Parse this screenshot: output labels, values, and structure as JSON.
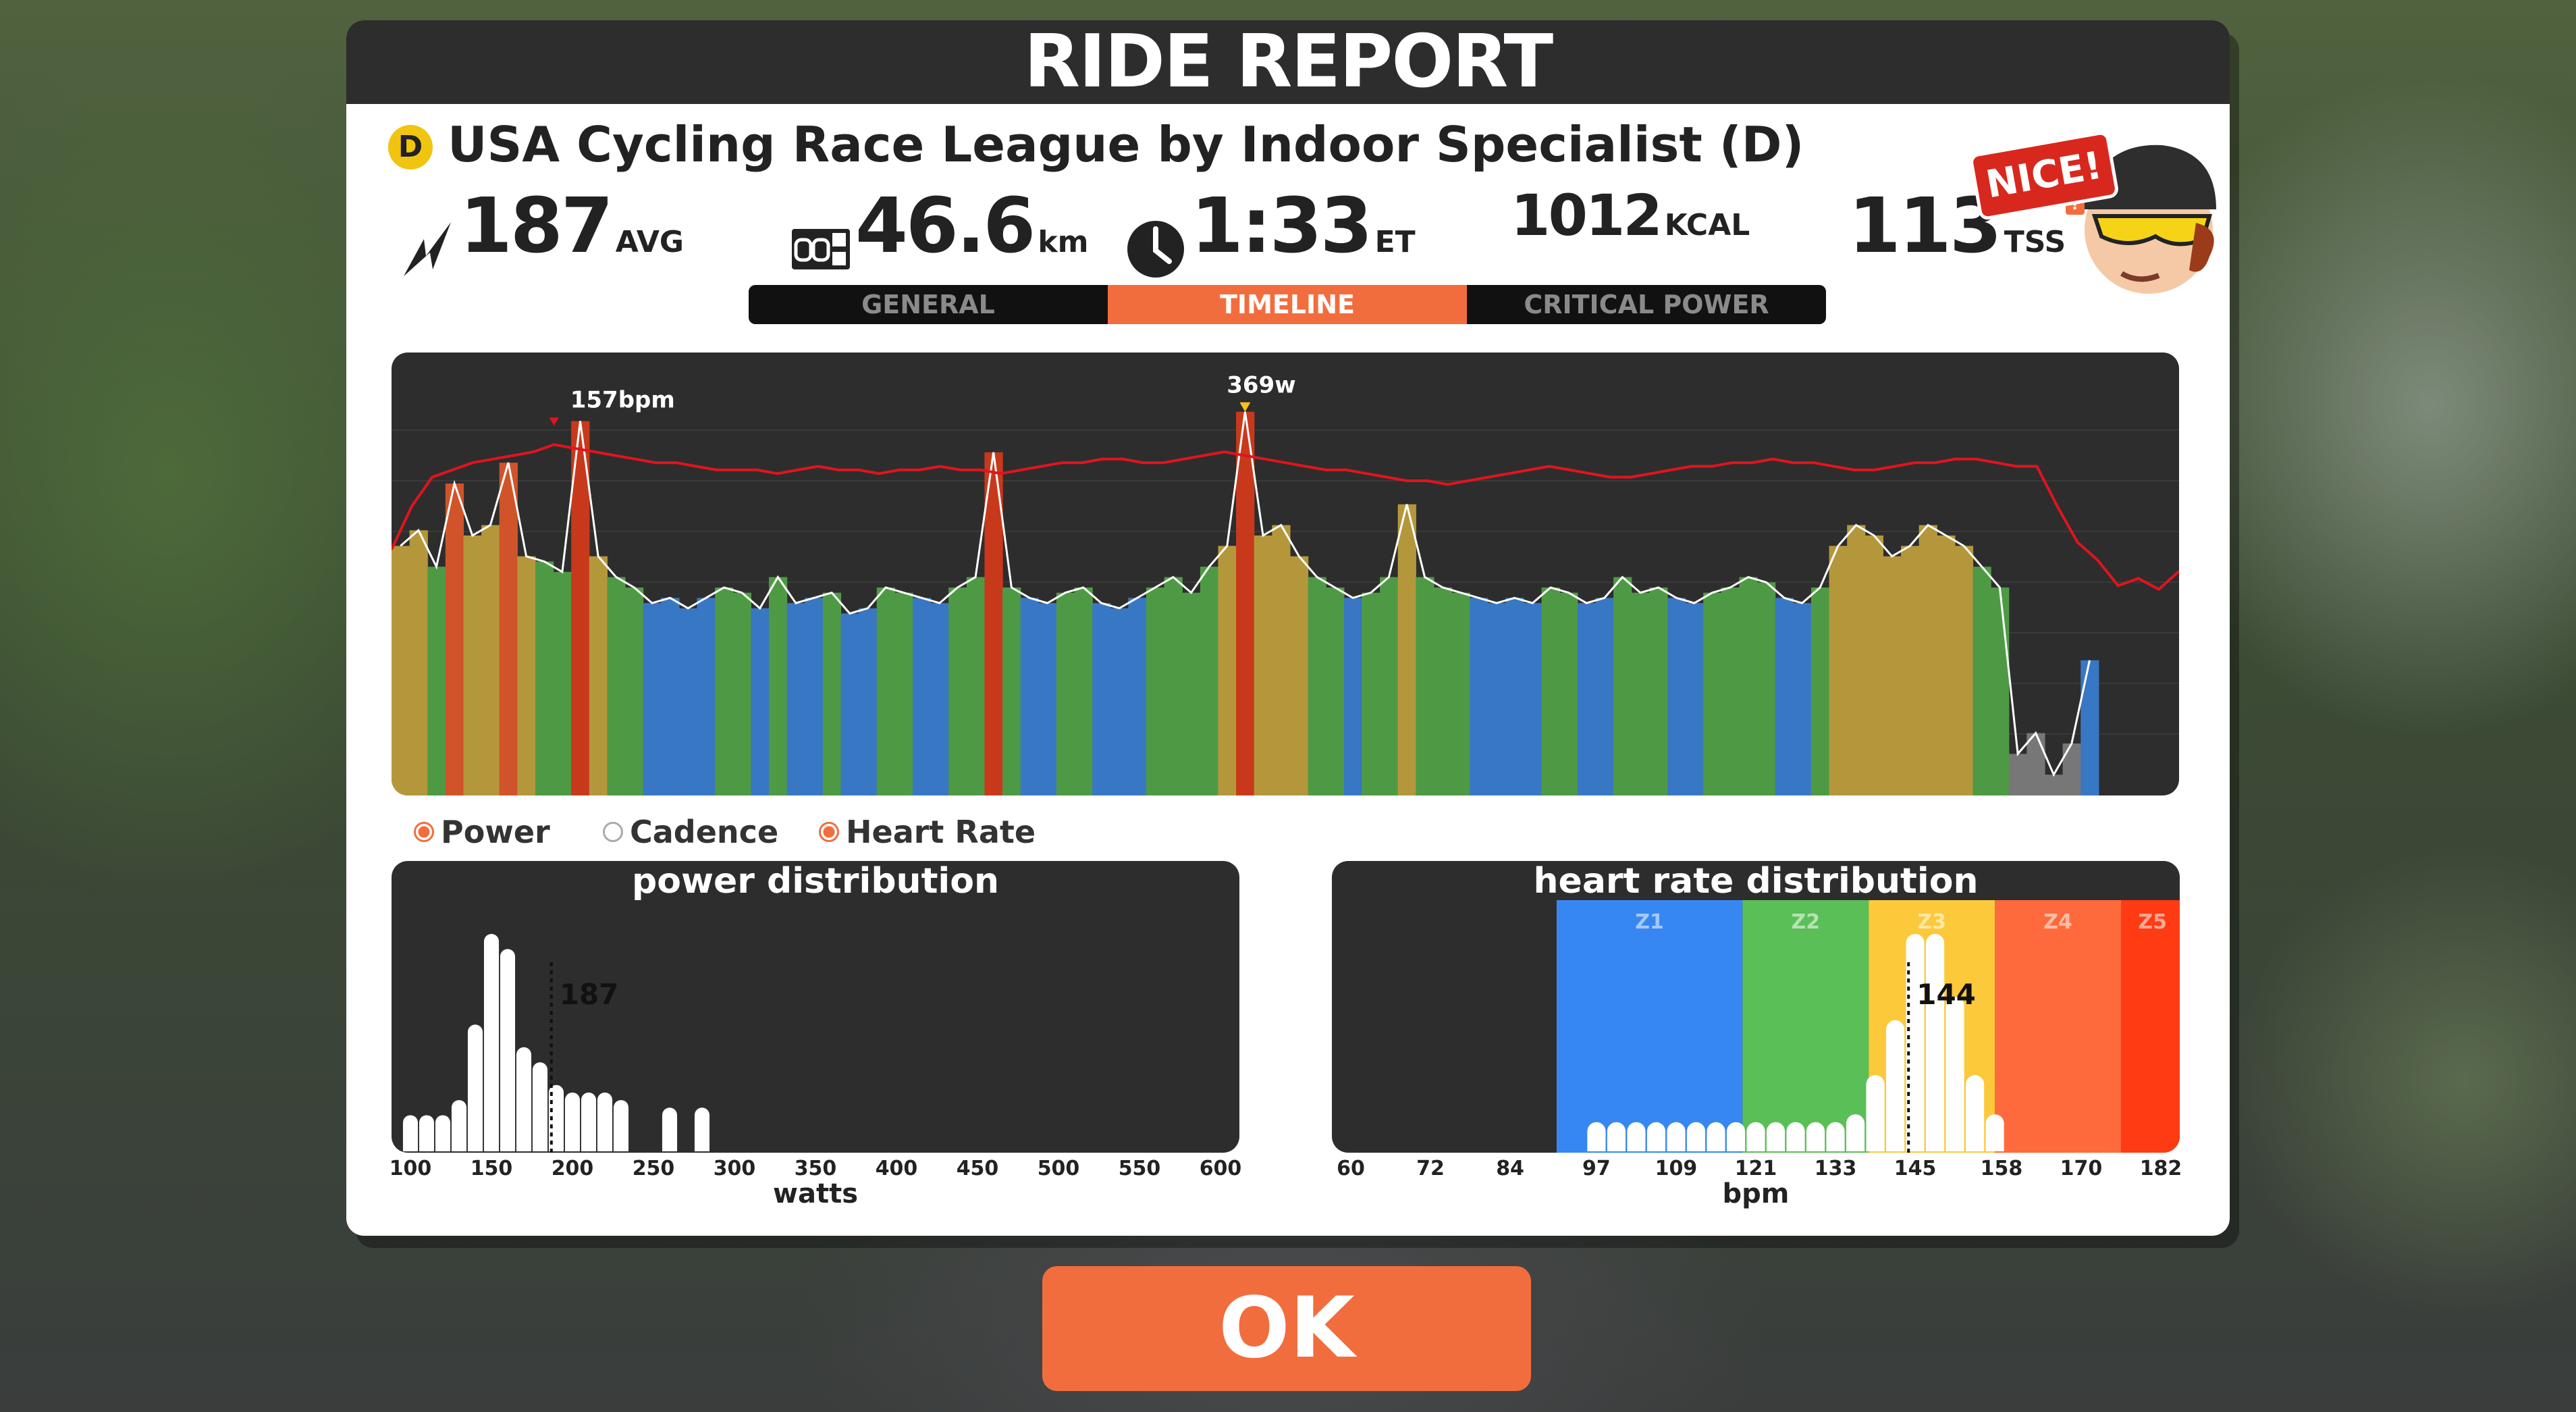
{
  "colors": {
    "accent": "#f26d3d",
    "panel": "#2d2d2d",
    "hr_line": "#e0141e",
    "z1": "#3787f2",
    "z2": "#5bbf57",
    "z3": "#fcc93a",
    "z4": "#ff6a3d",
    "z5": "#ff3b14"
  },
  "header": {
    "title": "RIDE REPORT"
  },
  "event": {
    "category": "D",
    "name": "USA Cycling Race League by Indoor Specialist (D)"
  },
  "stats": {
    "power": {
      "value": "187",
      "unit": "AVG",
      "icon": "lightning-icon"
    },
    "distance": {
      "value": "46.6",
      "unit": "km",
      "icon": "odometer-icon"
    },
    "time": {
      "value": "1:33",
      "unit": "ET",
      "icon": "clock-icon"
    },
    "calories": {
      "value": "1012",
      "unit": "KCAL"
    },
    "tss": {
      "value": "113",
      "unit": "TSS",
      "help": "?"
    }
  },
  "avatar": {
    "bubble": "NICE!"
  },
  "tabs": [
    {
      "label": "GENERAL"
    },
    {
      "label": "TIMELINE"
    },
    {
      "label": "CRITICAL POWER"
    }
  ],
  "legend": {
    "power": "Power",
    "cadence": "Cadence",
    "heart_rate": "Heart Rate"
  },
  "timeline": {
    "hr_annotation": "157bpm",
    "power_annotation": "369w"
  },
  "chart_data": [
    {
      "type": "area",
      "name": "timeline",
      "annotations": [
        "157bpm",
        "369w"
      ],
      "series": [
        {
          "name": "Power",
          "values": [
            240,
            255,
            220,
            300,
            250,
            260,
            320,
            230,
            225,
            215,
            360,
            230,
            210,
            200,
            185,
            190,
            180,
            190,
            200,
            195,
            180,
            210,
            185,
            190,
            195,
            175,
            180,
            200,
            195,
            190,
            185,
            200,
            210,
            330,
            200,
            190,
            185,
            195,
            200,
            185,
            180,
            190,
            200,
            210,
            195,
            220,
            240,
            369,
            250,
            260,
            230,
            210,
            200,
            190,
            195,
            210,
            280,
            210,
            200,
            195,
            190,
            185,
            190,
            185,
            200,
            195,
            185,
            190,
            210,
            195,
            200,
            190,
            185,
            195,
            200,
            210,
            205,
            190,
            185,
            200,
            240,
            260,
            250,
            230,
            240,
            260,
            250,
            240,
            220,
            200,
            40,
            60,
            20,
            50,
            130
          ]
        },
        {
          "name": "Heart Rate",
          "values": [
            128,
            140,
            148,
            150,
            152,
            153,
            154,
            155,
            157,
            156,
            155,
            154,
            153,
            152,
            152,
            151,
            150,
            150,
            150,
            149,
            150,
            151,
            150,
            150,
            149,
            150,
            150,
            151,
            150,
            150,
            149,
            150,
            151,
            152,
            152,
            153,
            153,
            152,
            152,
            153,
            154,
            155,
            154,
            153,
            152,
            151,
            150,
            150,
            149,
            148,
            147,
            147,
            146,
            147,
            148,
            149,
            150,
            151,
            150,
            149,
            148,
            148,
            149,
            150,
            151,
            151,
            152,
            152,
            153,
            152,
            152,
            151,
            150,
            150,
            151,
            152,
            152,
            153,
            153,
            152,
            151,
            151,
            140,
            130,
            125,
            118,
            120,
            117,
            122
          ]
        }
      ]
    },
    {
      "type": "bar",
      "title": "power distribution",
      "xlabel": "watts",
      "x_ticks": [
        100,
        150,
        200,
        250,
        300,
        350,
        400,
        450,
        500,
        550,
        600
      ],
      "annotation": "187",
      "categories": [
        100,
        110,
        120,
        130,
        140,
        150,
        160,
        170,
        180,
        190,
        200,
        210,
        220,
        230,
        240,
        250,
        260,
        270,
        280,
        290,
        300,
        310,
        320,
        330,
        340,
        350,
        360,
        370,
        380,
        390,
        400
      ],
      "values": [
        3,
        3,
        3,
        5,
        15,
        27,
        25,
        12,
        10,
        7,
        6,
        6,
        6,
        5,
        0,
        0,
        4,
        0,
        4,
        0,
        0,
        0,
        0,
        0,
        0,
        0,
        0,
        0,
        0,
        0,
        0
      ]
    },
    {
      "type": "bar",
      "title": "heart rate distribution",
      "xlabel": "bpm",
      "x_ticks": [
        60,
        72,
        84,
        97,
        109,
        121,
        133,
        145,
        158,
        170,
        182
      ],
      "annotation": "144",
      "zones": [
        {
          "name": "Z1"
        },
        {
          "name": "Z2"
        },
        {
          "name": "Z3"
        },
        {
          "name": "Z4"
        },
        {
          "name": "Z5"
        }
      ],
      "categories": [
        97,
        100,
        103,
        106,
        109,
        112,
        115,
        118,
        121,
        124,
        127,
        130,
        133,
        136,
        139,
        142,
        145,
        148,
        151,
        154,
        157
      ],
      "values": [
        2,
        2,
        2,
        2,
        2,
        2,
        2,
        2,
        2,
        2,
        2,
        2,
        2,
        3,
        8,
        15,
        26,
        26,
        18,
        8,
        3
      ]
    }
  ],
  "ok_button": {
    "label": "OK"
  }
}
